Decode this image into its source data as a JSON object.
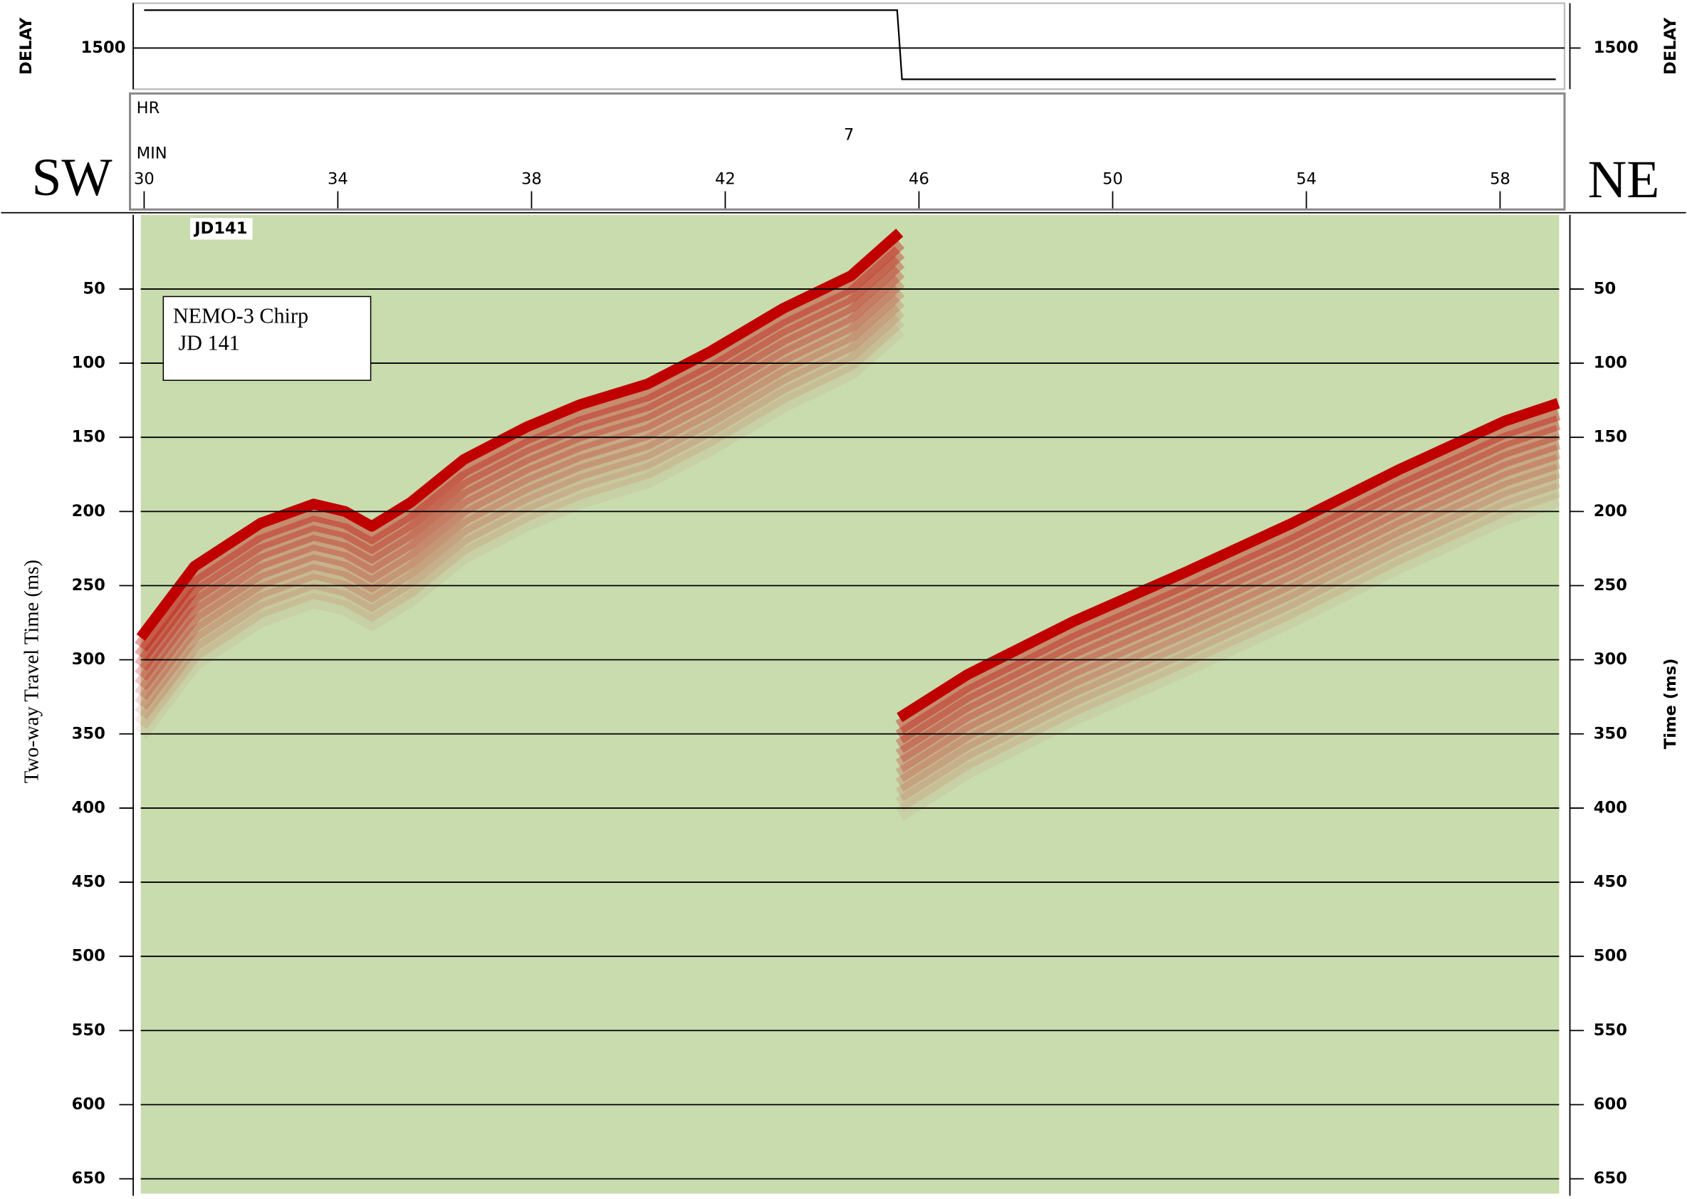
{
  "header": {
    "left_direction": "SW",
    "right_direction": "NE"
  },
  "chart_data": {
    "type": "seismic",
    "delay_label": "DELAY",
    "delay": {
      "x": [
        30,
        45.55,
        45.65,
        59.15
      ],
      "values": [
        1540,
        1540,
        1467,
        1467
      ],
      "ylim": [
        1460,
        1545
      ],
      "yticks": [
        1500
      ],
      "color": "#000000"
    },
    "hour_label": "HR",
    "hour": 7,
    "minute_label": "MIN",
    "xlim": [
      29.93,
      59.22
    ],
    "xticks": [
      30,
      34,
      38,
      42,
      46,
      50,
      54,
      58
    ],
    "ylim": [
      0,
      660
    ],
    "yticks": [
      50,
      100,
      150,
      200,
      250,
      300,
      350,
      400,
      450,
      500,
      550,
      600,
      650
    ],
    "grid": true,
    "y_label": "Two-way Travel Time (ms)",
    "y2_label": "Time (ms)",
    "line_id": "JD141",
    "annotation": [
      "NEMO-3 Chirp",
      "JD 141"
    ],
    "background": "#c9dcae",
    "series": [
      {
        "color": "#c00000",
        "x": [
          29.93,
          31.04,
          32.4,
          33.5,
          34.15,
          34.7,
          35.5,
          36.6,
          37.9,
          39.0,
          40.4,
          41.7,
          43.2,
          44.6,
          45.6,
          null,
          45.6,
          47.0,
          49.2,
          51.5,
          53.7,
          55.9,
          58.1,
          59.2
        ],
        "values": [
          285,
          237,
          208,
          195,
          200,
          210,
          194,
          165,
          143,
          128,
          114,
          92,
          63,
          41,
          12,
          null,
          339,
          310,
          274,
          241,
          208,
          172,
          139,
          127
        ]
      }
    ]
  }
}
